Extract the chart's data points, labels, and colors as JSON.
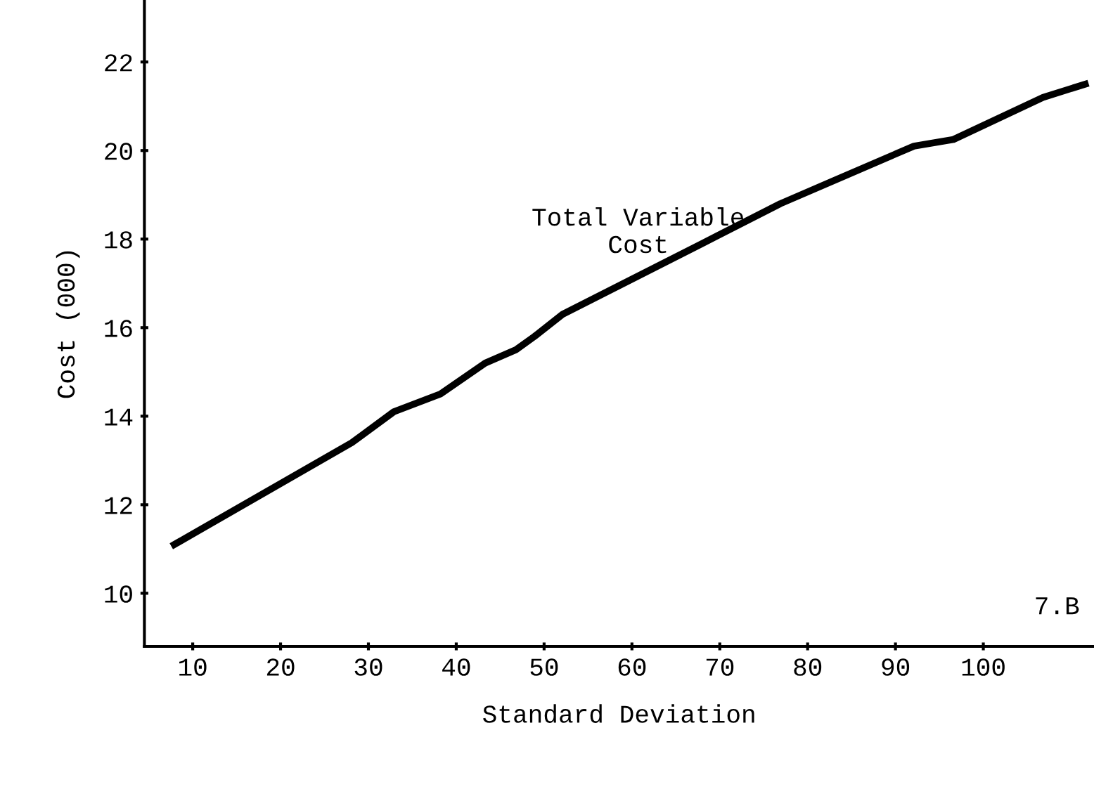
{
  "chart_data": {
    "type": "line",
    "xlabel": "Standard Deviation",
    "ylabel": "Cost (000)",
    "x": [
      7.9,
      28.1,
      32.9,
      38.2,
      43.3,
      46.8,
      48.9,
      52.1,
      68,
      76.9,
      92.1,
      96.6,
      106.8,
      111.6
    ],
    "series": [
      {
        "color": "#000000",
        "values": [
          11.1,
          13.4,
          14.1,
          14.5,
          15.2,
          15.5,
          15.8,
          16.3,
          17.9,
          18.8,
          20.1,
          20.25,
          21.2,
          21.5
        ]
      }
    ],
    "xlim": [
      4.5,
      112.6
    ],
    "ylim": [
      8.8,
      23.4
    ],
    "xticks": [
      10,
      20,
      30,
      40,
      50,
      60,
      70,
      80,
      90,
      100
    ],
    "yticks": [
      10,
      12,
      14,
      16,
      18,
      20,
      22
    ],
    "grid": false,
    "legend": false,
    "marker": "none",
    "line_style": "solid",
    "annotations": [
      "Total Variable\nCost",
      "7.B"
    ]
  }
}
